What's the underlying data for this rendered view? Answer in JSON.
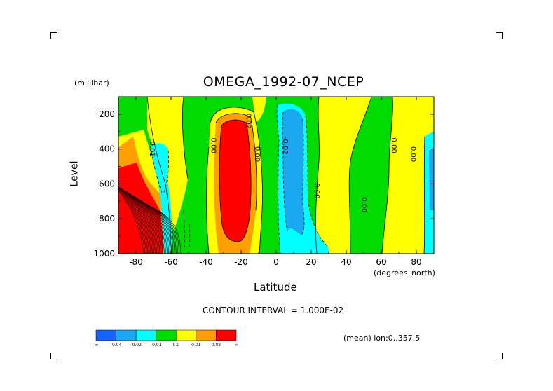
{
  "chart_data": {
    "type": "heatmap",
    "title": "OMEGA_1992-07_NCEP",
    "xlabel": "Latitude",
    "xunits": "(degrees_north)",
    "ylabel": "Level",
    "yunits": "(millibar)",
    "xlim": [
      -90,
      90
    ],
    "ylim": [
      1000,
      100
    ],
    "xticks": [
      -80,
      -60,
      -40,
      -20,
      0,
      20,
      40,
      60,
      80
    ],
    "xtick_labels": [
      "-80",
      "-60",
      "-40",
      "-20",
      "0",
      "20",
      "40",
      "60",
      "80"
    ],
    "yticks": [
      200,
      400,
      600,
      800,
      1000
    ],
    "ytick_labels": [
      "200",
      "400",
      "600",
      "800",
      "1000"
    ],
    "contour_interval_text": "CONTOUR INTERVAL = 1.000E-02",
    "mean_note": "(mean) lon:0..357.5",
    "colorbar": {
      "bins": [
        {
          "color": "#1462ff",
          "range": "< -0.04"
        },
        {
          "color": "#1aa8f0",
          "range": "-0.04 to -0.02"
        },
        {
          "color": "#00ffff",
          "range": "-0.02 to -0.01"
        },
        {
          "color": "#00dc00",
          "range": "-0.01 to 0.0"
        },
        {
          "color": "#ffff00",
          "range": "0.0 to 0.01"
        },
        {
          "color": "#ffa000",
          "range": "0.01 to 0.02"
        },
        {
          "color": "#ff0000",
          "range": "> 0.02"
        }
      ],
      "labels": [
        "-∞",
        "-0.04",
        "-0.02",
        "-0.01",
        "0.0",
        "0.01",
        "0.02",
        "∞"
      ]
    },
    "contour_labels": [
      {
        "text": "0.01",
        "lat": -72,
        "level": 400
      },
      {
        "text": "0.00",
        "lat": -37,
        "level": 380
      },
      {
        "text": "0.02",
        "lat": -17,
        "level": 240
      },
      {
        "text": "0.00",
        "lat": -12,
        "level": 430
      },
      {
        "text": "-0.02",
        "lat": 4,
        "level": 380
      },
      {
        "text": "0.00",
        "lat": 22,
        "level": 640
      },
      {
        "text": "0.00",
        "lat": 49,
        "level": 720
      },
      {
        "text": "0.00",
        "lat": 66,
        "level": 380
      },
      {
        "text": "0.00",
        "lat": 77,
        "level": 430
      }
    ]
  }
}
